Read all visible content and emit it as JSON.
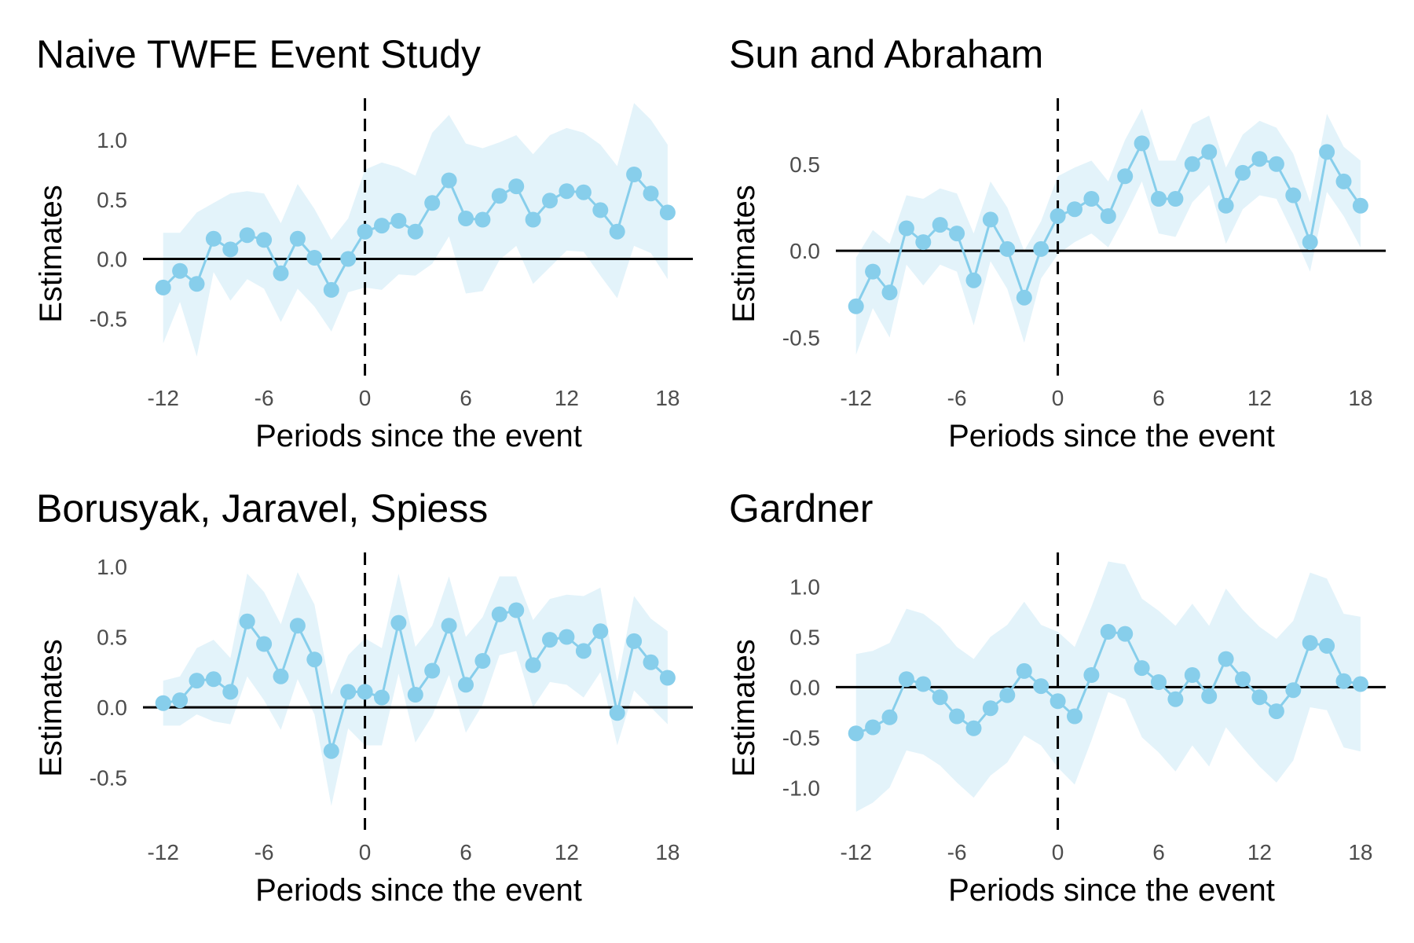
{
  "figure": {
    "series_color": "#87CEEB",
    "band_color": "#E3F3FA",
    "reference_color": "#000000"
  },
  "chart_data": [
    {
      "type": "line",
      "title": "Naive TWFE Event Study",
      "xlabel": "Periods since the event",
      "ylabel": "Estimates",
      "x": [
        -12,
        -11,
        -10,
        -9,
        -8,
        -7,
        -6,
        -5,
        -4,
        -3,
        -2,
        -1,
        0,
        1,
        2,
        3,
        4,
        5,
        6,
        7,
        8,
        9,
        10,
        11,
        12,
        13,
        14,
        15,
        16,
        17,
        18
      ],
      "estimate": [
        -0.24,
        -0.1,
        -0.21,
        0.17,
        0.08,
        0.2,
        0.16,
        -0.12,
        0.17,
        0.01,
        -0.26,
        0.0,
        0.23,
        0.28,
        0.32,
        0.23,
        0.47,
        0.66,
        0.34,
        0.33,
        0.53,
        0.61,
        0.33,
        0.49,
        0.57,
        0.56,
        0.41,
        0.23,
        0.71,
        0.55,
        0.39
      ],
      "ci_low": [
        -0.71,
        -0.36,
        -0.82,
        -0.11,
        -0.35,
        -0.17,
        -0.25,
        -0.53,
        -0.25,
        -0.4,
        -0.61,
        -0.28,
        -0.24,
        -0.26,
        -0.13,
        -0.14,
        -0.04,
        0.19,
        -0.29,
        -0.27,
        -0.01,
        0.11,
        -0.21,
        -0.07,
        0.07,
        0.06,
        -0.14,
        -0.33,
        0.11,
        0.05,
        -0.17
      ],
      "ci_high": [
        0.22,
        0.22,
        0.39,
        0.47,
        0.55,
        0.57,
        0.55,
        0.3,
        0.63,
        0.42,
        0.16,
        0.34,
        0.75,
        0.81,
        0.77,
        0.7,
        1.06,
        1.21,
        0.97,
        0.93,
        0.98,
        1.04,
        0.88,
        1.04,
        1.1,
        1.06,
        0.96,
        0.78,
        1.31,
        1.17,
        0.96
      ],
      "ylim": [
        -0.98,
        1.35
      ],
      "yticks": [
        -0.5,
        0.0,
        0.5,
        1.0
      ],
      "ytick_labels": [
        "-0.5",
        "0.0",
        "0.5",
        "1.0"
      ],
      "xlim": [
        -13.2,
        19.5
      ],
      "xticks": [
        -12,
        -6,
        0,
        6,
        12,
        18
      ],
      "xtick_labels": [
        "-12",
        "-6",
        "0",
        "6",
        "12",
        "18"
      ],
      "hline": 0,
      "vline": 0,
      "grid": false
    },
    {
      "type": "line",
      "title": "Sun and Abraham",
      "xlabel": "Periods since the event",
      "ylabel": "Estimates",
      "x": [
        -12,
        -11,
        -10,
        -9,
        -8,
        -7,
        -6,
        -5,
        -4,
        -3,
        -2,
        -1,
        0,
        1,
        2,
        3,
        4,
        5,
        6,
        7,
        8,
        9,
        10,
        11,
        12,
        13,
        14,
        15,
        16,
        17,
        18
      ],
      "estimate": [
        -0.32,
        -0.12,
        -0.24,
        0.13,
        0.05,
        0.15,
        0.1,
        -0.17,
        0.18,
        0.01,
        -0.27,
        0.01,
        0.2,
        0.24,
        0.3,
        0.2,
        0.43,
        0.62,
        0.3,
        0.3,
        0.5,
        0.57,
        0.26,
        0.45,
        0.53,
        0.5,
        0.32,
        0.05,
        0.57,
        0.4,
        0.26
      ],
      "ci_low": [
        -0.6,
        -0.33,
        -0.5,
        -0.08,
        -0.2,
        -0.08,
        -0.12,
        -0.43,
        -0.06,
        -0.22,
        -0.53,
        -0.16,
        -0.02,
        0.05,
        0.1,
        0.02,
        0.2,
        0.4,
        0.1,
        0.08,
        0.28,
        0.38,
        0.04,
        0.24,
        0.32,
        0.3,
        0.1,
        -0.12,
        0.34,
        0.2,
        0.02
      ],
      "ci_high": [
        -0.04,
        0.12,
        0.04,
        0.32,
        0.3,
        0.36,
        0.33,
        0.1,
        0.4,
        0.25,
        0.0,
        0.17,
        0.43,
        0.48,
        0.52,
        0.4,
        0.64,
        0.82,
        0.52,
        0.52,
        0.73,
        0.78,
        0.48,
        0.67,
        0.75,
        0.71,
        0.56,
        0.28,
        0.79,
        0.6,
        0.52
      ],
      "ylim": [
        -0.72,
        0.88
      ],
      "yticks": [
        -0.5,
        0.0,
        0.5
      ],
      "ytick_labels": [
        "-0.5",
        "0.0",
        "0.5"
      ],
      "xlim": [
        -13.2,
        19.5
      ],
      "xticks": [
        -12,
        -6,
        0,
        6,
        12,
        18
      ],
      "xtick_labels": [
        "-12",
        "-6",
        "0",
        "6",
        "12",
        "18"
      ],
      "hline": 0,
      "vline": 0,
      "grid": false
    },
    {
      "type": "line",
      "title": "Borusyak, Jaravel, Spiess",
      "xlabel": "Periods since the event",
      "ylabel": "Estimates",
      "x": [
        -12,
        -11,
        -10,
        -9,
        -8,
        -7,
        -6,
        -5,
        -4,
        -3,
        -2,
        -1,
        0,
        1,
        2,
        3,
        4,
        5,
        6,
        7,
        8,
        9,
        10,
        11,
        12,
        13,
        14,
        15,
        16,
        17,
        18
      ],
      "estimate": [
        0.03,
        0.05,
        0.19,
        0.2,
        0.11,
        0.61,
        0.45,
        0.22,
        0.58,
        0.34,
        -0.31,
        0.11,
        0.11,
        0.07,
        0.6,
        0.09,
        0.26,
        0.58,
        0.16,
        0.33,
        0.66,
        0.69,
        0.3,
        0.48,
        0.5,
        0.4,
        0.54,
        -0.04,
        0.47,
        0.32,
        0.21
      ],
      "ci_low": [
        -0.13,
        -0.13,
        -0.05,
        -0.1,
        -0.12,
        0.22,
        0.05,
        -0.16,
        0.2,
        -0.05,
        -0.7,
        -0.15,
        -0.27,
        -0.27,
        0.24,
        -0.25,
        -0.06,
        0.23,
        -0.18,
        0.02,
        0.37,
        0.4,
        0.0,
        0.18,
        0.16,
        0.07,
        0.25,
        -0.27,
        0.12,
        0.0,
        -0.12
      ],
      "ci_high": [
        0.19,
        0.22,
        0.42,
        0.48,
        0.35,
        0.95,
        0.82,
        0.59,
        0.96,
        0.73,
        0.09,
        0.37,
        0.49,
        0.42,
        0.95,
        0.43,
        0.58,
        0.93,
        0.5,
        0.64,
        0.93,
        0.93,
        0.62,
        0.77,
        0.8,
        0.79,
        0.85,
        0.18,
        0.79,
        0.63,
        0.54
      ],
      "ylim": [
        -0.87,
        1.1
      ],
      "yticks": [
        -0.5,
        0.0,
        0.5,
        1.0
      ],
      "ytick_labels": [
        "-0.5",
        "0.0",
        "0.5",
        "1.0"
      ],
      "xlim": [
        -13.2,
        19.5
      ],
      "xticks": [
        -12,
        -6,
        0,
        6,
        12,
        18
      ],
      "xtick_labels": [
        "-12",
        "-6",
        "0",
        "6",
        "12",
        "18"
      ],
      "hline": 0,
      "vline": 0,
      "grid": false
    },
    {
      "type": "line",
      "title": "Gardner",
      "xlabel": "Periods since the event",
      "ylabel": "Estimates",
      "x": [
        -12,
        -11,
        -10,
        -9,
        -8,
        -7,
        -6,
        -5,
        -4,
        -3,
        -2,
        -1,
        0,
        1,
        2,
        3,
        4,
        5,
        6,
        7,
        8,
        9,
        10,
        11,
        12,
        13,
        14,
        15,
        16,
        17,
        18
      ],
      "estimate": [
        -0.46,
        -0.4,
        -0.3,
        0.08,
        0.03,
        -0.1,
        -0.29,
        -0.41,
        -0.21,
        -0.08,
        0.16,
        0.01,
        -0.14,
        -0.29,
        0.12,
        0.55,
        0.53,
        0.19,
        0.05,
        -0.12,
        0.12,
        -0.09,
        0.28,
        0.08,
        -0.1,
        -0.24,
        -0.03,
        0.44,
        0.41,
        0.06,
        0.03
      ],
      "ci_low": [
        -1.24,
        -1.15,
        -1.0,
        -0.63,
        -0.67,
        -0.78,
        -0.95,
        -1.1,
        -0.88,
        -0.75,
        -0.48,
        -0.58,
        -0.8,
        -0.97,
        -0.53,
        -0.05,
        -0.12,
        -0.5,
        -0.65,
        -0.84,
        -0.58,
        -0.79,
        -0.4,
        -0.6,
        -0.79,
        -0.95,
        -0.73,
        -0.2,
        -0.23,
        -0.6,
        -0.64
      ],
      "ci_high": [
        0.33,
        0.36,
        0.44,
        0.78,
        0.73,
        0.6,
        0.4,
        0.28,
        0.5,
        0.62,
        0.85,
        0.62,
        0.55,
        0.4,
        0.8,
        1.25,
        1.22,
        0.88,
        0.76,
        0.61,
        0.83,
        0.61,
        0.98,
        0.77,
        0.6,
        0.48,
        0.66,
        1.14,
        1.08,
        0.73,
        0.7
      ],
      "ylim": [
        -1.42,
        1.34
      ],
      "yticks": [
        -1.0,
        -0.5,
        0.0,
        0.5,
        1.0
      ],
      "ytick_labels": [
        "-1.0",
        "-0.5",
        "0.0",
        "0.5",
        "1.0"
      ],
      "xlim": [
        -13.2,
        19.5
      ],
      "xticks": [
        -12,
        -6,
        0,
        6,
        12,
        18
      ],
      "xtick_labels": [
        "-12",
        "-6",
        "0",
        "6",
        "12",
        "18"
      ],
      "hline": 0,
      "vline": 0,
      "grid": false
    }
  ]
}
